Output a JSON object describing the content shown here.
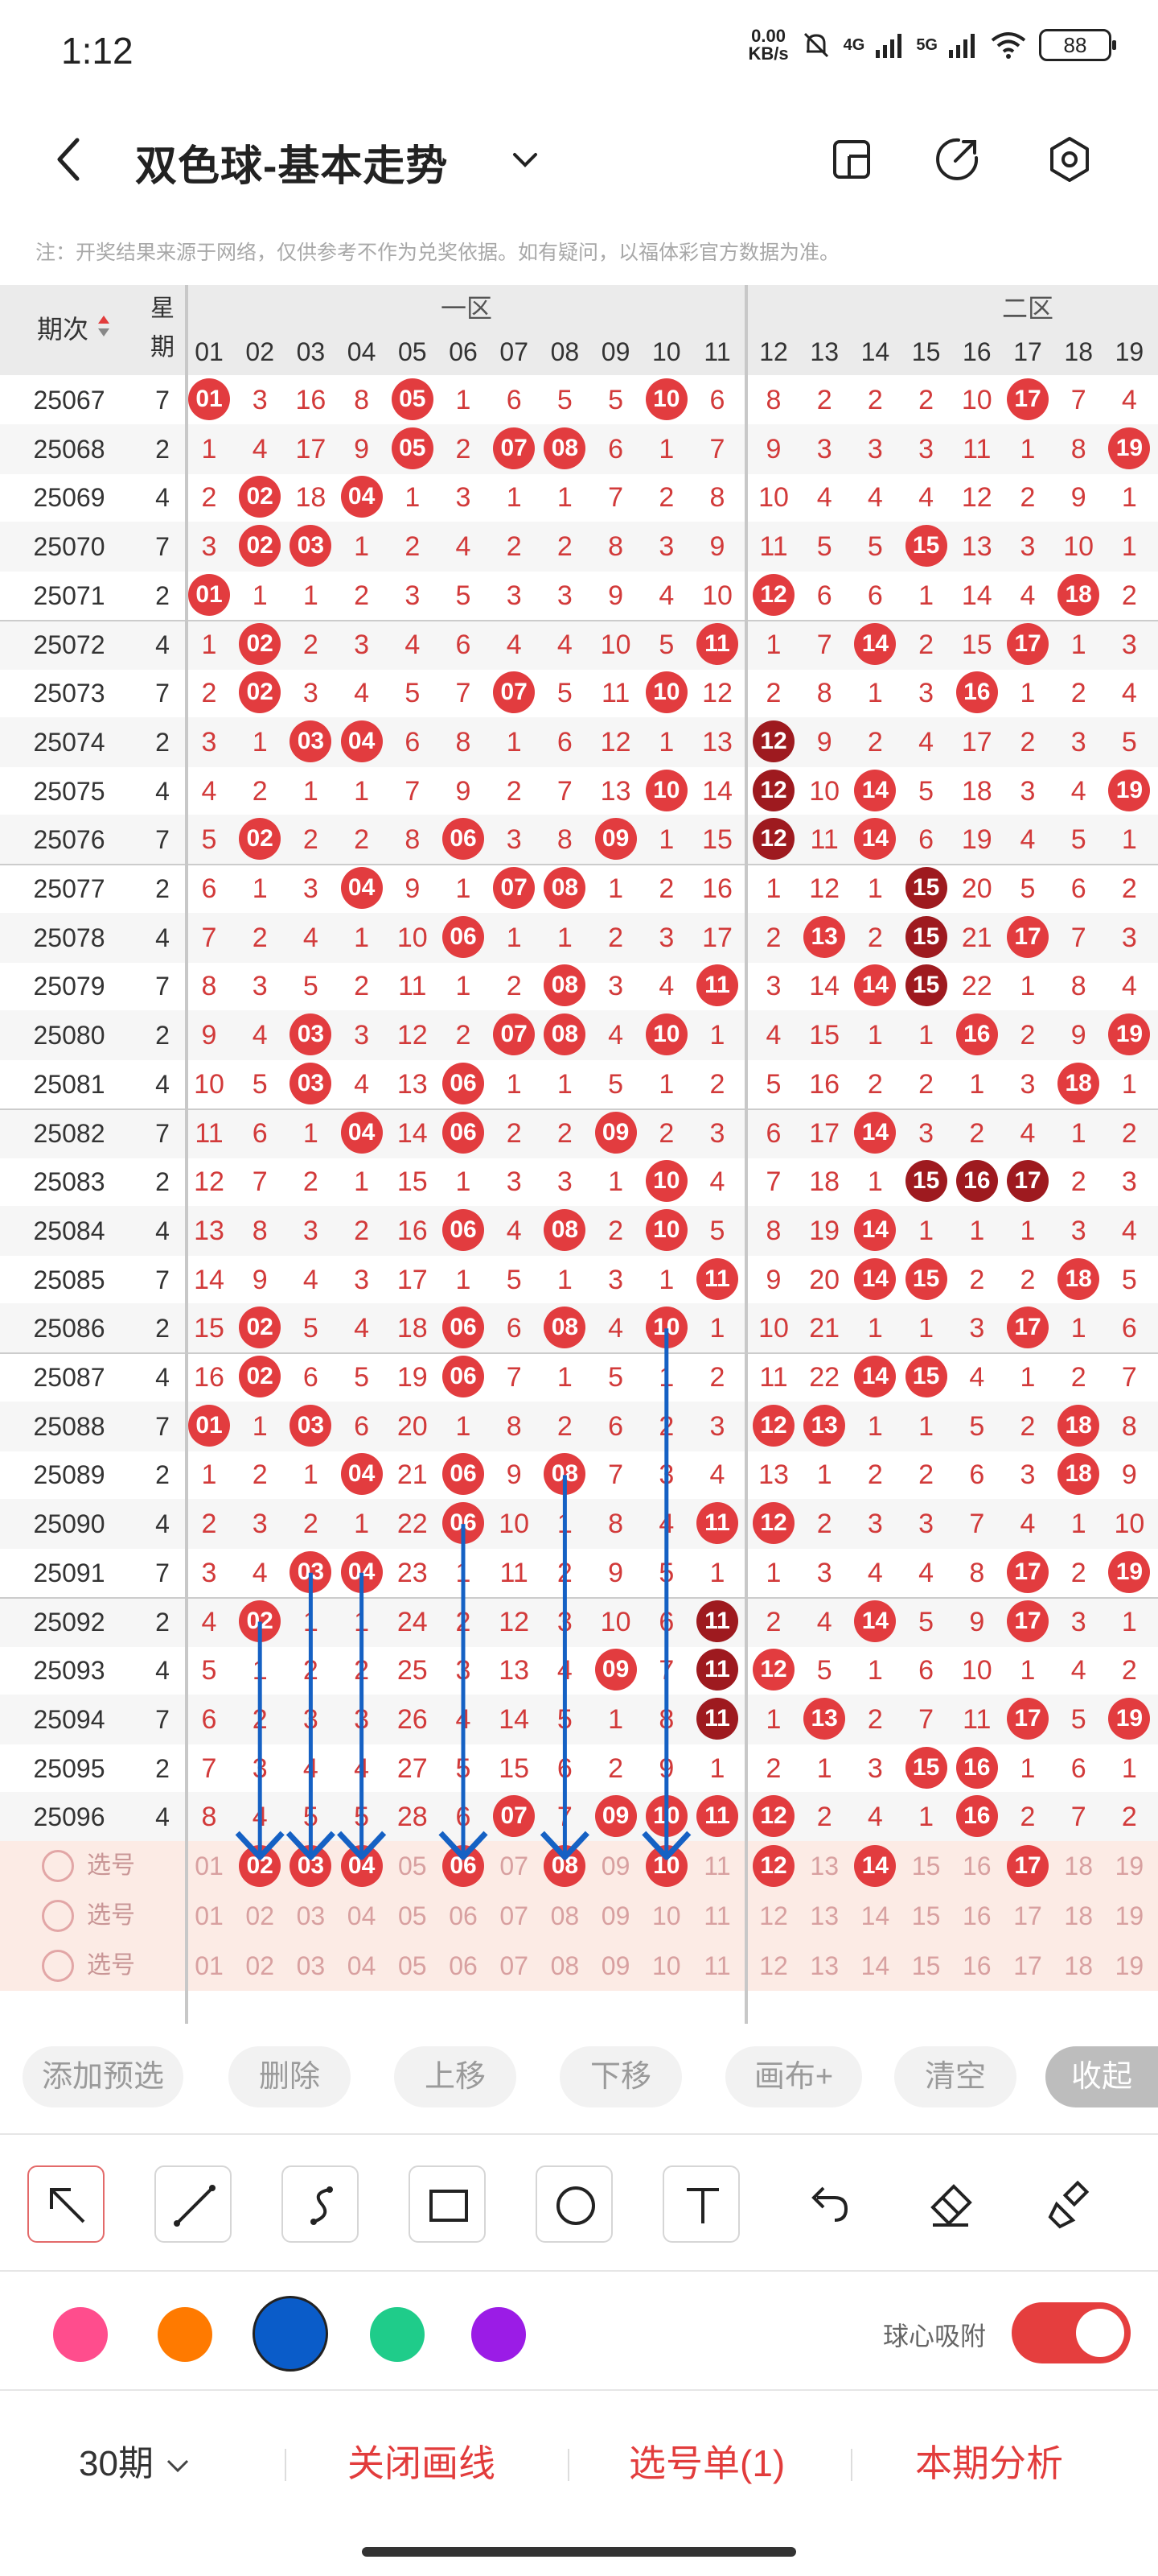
{
  "status_bar": {
    "time": "1:12",
    "net_speed_top": "0.00",
    "net_speed_bottom": "KB/s",
    "sig1": "4G",
    "sig2": "5G",
    "battery": "88"
  },
  "header": {
    "title": "双色球-基本走势"
  },
  "note": "注：开奖结果来源于网络，仅供参考不作为兑奖依据。如有疑问，以福体彩官方数据为准。",
  "columns": {
    "issue": "期次",
    "week": "星期",
    "zone1": "一区",
    "zone2": "二区",
    "z1_nums": [
      "01",
      "02",
      "03",
      "04",
      "05",
      "06",
      "07",
      "08",
      "09",
      "10",
      "11"
    ],
    "z2_nums": [
      "12",
      "13",
      "14",
      "15",
      "16",
      "17",
      "18",
      "19"
    ]
  },
  "rows": [
    {
      "issue": "25067",
      "wk": "7",
      "c": [
        "01",
        "3",
        "16",
        "8",
        "05",
        "1",
        "6",
        "5",
        "5",
        "10",
        "6",
        "8",
        "2",
        "2",
        "2",
        "10",
        "17",
        "7",
        "4"
      ]
    },
    {
      "issue": "25068",
      "wk": "2",
      "c": [
        "1",
        "4",
        "17",
        "9",
        "05",
        "2",
        "07",
        "08",
        "6",
        "1",
        "7",
        "9",
        "3",
        "3",
        "3",
        "11",
        "1",
        "8",
        "19"
      ]
    },
    {
      "issue": "25069",
      "wk": "4",
      "c": [
        "2",
        "02",
        "18",
        "04",
        "1",
        "3",
        "1",
        "1",
        "7",
        "2",
        "8",
        "10",
        "4",
        "4",
        "4",
        "12",
        "2",
        "9",
        "1"
      ]
    },
    {
      "issue": "25070",
      "wk": "7",
      "c": [
        "3",
        "02",
        "03",
        "1",
        "2",
        "4",
        "2",
        "2",
        "8",
        "3",
        "9",
        "11",
        "5",
        "5",
        "15",
        "13",
        "3",
        "10",
        "1"
      ]
    },
    {
      "issue": "25071",
      "wk": "2",
      "c": [
        "01",
        "1",
        "1",
        "2",
        "3",
        "5",
        "3",
        "3",
        "9",
        "4",
        "10",
        "12",
        "6",
        "6",
        "1",
        "14",
        "4",
        "18",
        "2"
      ]
    },
    {
      "issue": "25072",
      "wk": "4",
      "c": [
        "1",
        "02",
        "2",
        "3",
        "4",
        "6",
        "4",
        "4",
        "10",
        "5",
        "11",
        "1",
        "7",
        "14",
        "2",
        "15",
        "17",
        "1",
        "3"
      ]
    },
    {
      "issue": "25073",
      "wk": "7",
      "c": [
        "2",
        "02",
        "3",
        "4",
        "5",
        "7",
        "07",
        "5",
        "11",
        "10",
        "12",
        "2",
        "8",
        "1",
        "3",
        "16",
        "1",
        "2",
        "4"
      ]
    },
    {
      "issue": "25074",
      "wk": "2",
      "c": [
        "3",
        "1",
        "03",
        "04",
        "6",
        "8",
        "1",
        "6",
        "12",
        "1",
        "13",
        "12",
        "9",
        "2",
        "4",
        "17",
        "2",
        "3",
        "5"
      ]
    },
    {
      "issue": "25075",
      "wk": "4",
      "c": [
        "4",
        "2",
        "1",
        "1",
        "7",
        "9",
        "2",
        "7",
        "13",
        "10",
        "14",
        "12",
        "10",
        "14",
        "5",
        "18",
        "3",
        "4",
        "19"
      ]
    },
    {
      "issue": "25076",
      "wk": "7",
      "c": [
        "5",
        "02",
        "2",
        "2",
        "8",
        "06",
        "3",
        "8",
        "09",
        "1",
        "15",
        "12",
        "11",
        "14",
        "6",
        "19",
        "4",
        "5",
        "1"
      ]
    },
    {
      "issue": "25077",
      "wk": "2",
      "c": [
        "6",
        "1",
        "3",
        "04",
        "9",
        "1",
        "07",
        "08",
        "1",
        "2",
        "16",
        "1",
        "12",
        "1",
        "15",
        "20",
        "5",
        "6",
        "2"
      ]
    },
    {
      "issue": "25078",
      "wk": "4",
      "c": [
        "7",
        "2",
        "4",
        "1",
        "10",
        "06",
        "1",
        "1",
        "2",
        "3",
        "17",
        "2",
        "13",
        "2",
        "15",
        "21",
        "17",
        "7",
        "3"
      ]
    },
    {
      "issue": "25079",
      "wk": "7",
      "c": [
        "8",
        "3",
        "5",
        "2",
        "11",
        "1",
        "2",
        "08",
        "3",
        "4",
        "11",
        "3",
        "14",
        "14",
        "15",
        "22",
        "1",
        "8",
        "4"
      ]
    },
    {
      "issue": "25080",
      "wk": "2",
      "c": [
        "9",
        "4",
        "03",
        "3",
        "12",
        "2",
        "07",
        "08",
        "4",
        "10",
        "1",
        "4",
        "15",
        "1",
        "1",
        "16",
        "2",
        "9",
        "19"
      ]
    },
    {
      "issue": "25081",
      "wk": "4",
      "c": [
        "10",
        "5",
        "03",
        "4",
        "13",
        "06",
        "1",
        "1",
        "5",
        "1",
        "2",
        "5",
        "16",
        "2",
        "2",
        "1",
        "3",
        "18",
        "1"
      ]
    },
    {
      "issue": "25082",
      "wk": "7",
      "c": [
        "11",
        "6",
        "1",
        "04",
        "14",
        "06",
        "2",
        "2",
        "09",
        "2",
        "3",
        "6",
        "17",
        "14",
        "3",
        "2",
        "4",
        "1",
        "2"
      ]
    },
    {
      "issue": "25083",
      "wk": "2",
      "c": [
        "12",
        "7",
        "2",
        "1",
        "15",
        "1",
        "3",
        "3",
        "1",
        "10",
        "4",
        "7",
        "18",
        "1",
        "15",
        "16",
        "17",
        "2",
        "3"
      ]
    },
    {
      "issue": "25084",
      "wk": "4",
      "c": [
        "13",
        "8",
        "3",
        "2",
        "16",
        "06",
        "4",
        "08",
        "2",
        "10",
        "5",
        "8",
        "19",
        "14",
        "1",
        "1",
        "1",
        "3",
        "4"
      ]
    },
    {
      "issue": "25085",
      "wk": "7",
      "c": [
        "14",
        "9",
        "4",
        "3",
        "17",
        "1",
        "5",
        "1",
        "3",
        "1",
        "11",
        "9",
        "20",
        "14",
        "15",
        "2",
        "2",
        "18",
        "5"
      ]
    },
    {
      "issue": "25086",
      "wk": "2",
      "c": [
        "15",
        "02",
        "5",
        "4",
        "18",
        "06",
        "6",
        "08",
        "4",
        "10",
        "1",
        "10",
        "21",
        "1",
        "1",
        "3",
        "17",
        "1",
        "6"
      ]
    },
    {
      "issue": "25087",
      "wk": "4",
      "c": [
        "16",
        "02",
        "6",
        "5",
        "19",
        "06",
        "7",
        "1",
        "5",
        "1",
        "2",
        "11",
        "22",
        "14",
        "15",
        "4",
        "1",
        "2",
        "7"
      ]
    },
    {
      "issue": "25088",
      "wk": "7",
      "c": [
        "01",
        "1",
        "03",
        "6",
        "20",
        "1",
        "8",
        "2",
        "6",
        "2",
        "3",
        "12",
        "13",
        "1",
        "1",
        "5",
        "2",
        "18",
        "8"
      ]
    },
    {
      "issue": "25089",
      "wk": "2",
      "c": [
        "1",
        "2",
        "1",
        "04",
        "21",
        "06",
        "9",
        "08",
        "7",
        "3",
        "4",
        "13",
        "1",
        "2",
        "2",
        "6",
        "3",
        "18",
        "9"
      ]
    },
    {
      "issue": "25090",
      "wk": "4",
      "c": [
        "2",
        "3",
        "2",
        "1",
        "22",
        "06",
        "10",
        "1",
        "8",
        "4",
        "11",
        "12",
        "2",
        "3",
        "3",
        "7",
        "4",
        "1",
        "10"
      ]
    },
    {
      "issue": "25091",
      "wk": "7",
      "c": [
        "3",
        "4",
        "03",
        "04",
        "23",
        "1",
        "11",
        "2",
        "9",
        "5",
        "1",
        "1",
        "3",
        "4",
        "4",
        "8",
        "17",
        "2",
        "19"
      ]
    },
    {
      "issue": "25092",
      "wk": "2",
      "c": [
        "4",
        "02",
        "1",
        "1",
        "24",
        "2",
        "12",
        "3",
        "10",
        "6",
        "11",
        "2",
        "4",
        "14",
        "5",
        "9",
        "17",
        "3",
        "1"
      ]
    },
    {
      "issue": "25093",
      "wk": "4",
      "c": [
        "5",
        "1",
        "2",
        "2",
        "25",
        "3",
        "13",
        "4",
        "09",
        "7",
        "11",
        "12",
        "5",
        "1",
        "6",
        "10",
        "1",
        "4",
        "2"
      ]
    },
    {
      "issue": "25094",
      "wk": "7",
      "c": [
        "6",
        "2",
        "3",
        "3",
        "26",
        "4",
        "14",
        "5",
        "1",
        "8",
        "11",
        "1",
        "13",
        "2",
        "7",
        "11",
        "17",
        "5",
        "19"
      ]
    },
    {
      "issue": "25095",
      "wk": "2",
      "c": [
        "7",
        "3",
        "4",
        "4",
        "27",
        "5",
        "15",
        "6",
        "2",
        "9",
        "1",
        "2",
        "1",
        "3",
        "15",
        "16",
        "1",
        "6",
        "1"
      ]
    },
    {
      "issue": "25096",
      "wk": "4",
      "c": [
        "8",
        "4",
        "5",
        "5",
        "28",
        "6",
        "07",
        "7",
        "09",
        "10",
        "11",
        "12",
        "2",
        "4",
        "1",
        "16",
        "2",
        "7",
        "2"
      ]
    }
  ],
  "select_rows": [
    {
      "label": "选号",
      "picked": [
        "02",
        "03",
        "04",
        "06",
        "08",
        "10",
        "12",
        "14",
        "17"
      ]
    },
    {
      "label": "选号",
      "picked": []
    },
    {
      "label": "选号",
      "picked": []
    }
  ],
  "actions": {
    "add": "添加预选",
    "del": "删除",
    "up": "上移",
    "down": "下移",
    "canvas": "画布+",
    "clear": "清空",
    "fold": "收起"
  },
  "draw_tools": [
    "arrow-tool",
    "line-tool",
    "curve-tool",
    "rect-tool",
    "circle-tool",
    "text-tool",
    "undo-tool",
    "eraser-tool",
    "clear-tool"
  ],
  "colors": [
    "#ff4d8d",
    "#ff7a00",
    "#0a5cc9",
    "#1fcc8a",
    "#9b1ce6"
  ],
  "selected_color": "#0a5cc9",
  "snap": {
    "label": "球心吸附",
    "on": true
  },
  "bottom": {
    "period": "30期",
    "close_draw": "关闭画线",
    "picklist": "选号单(1)",
    "analysis": "本期分析"
  }
}
